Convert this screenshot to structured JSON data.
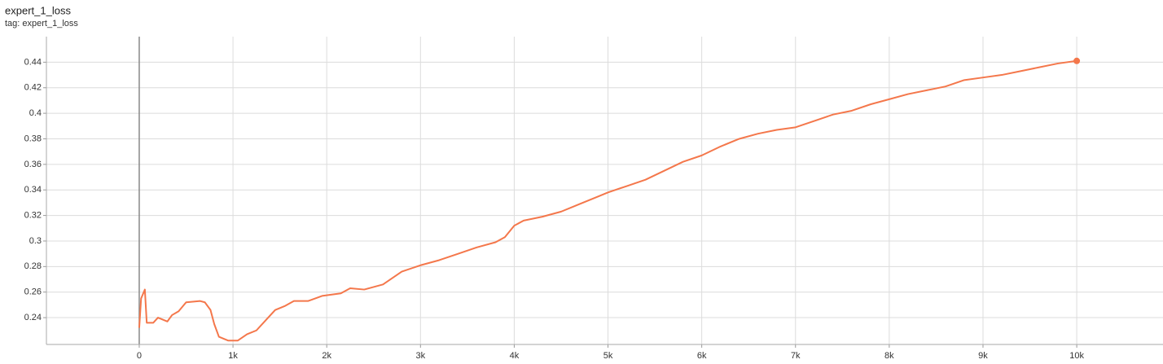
{
  "chart_data": {
    "type": "line",
    "title": "expert_1_loss",
    "subtitle": "tag: expert_1_loss",
    "x": [
      0,
      20,
      60,
      80,
      150,
      200,
      300,
      350,
      420,
      500,
      650,
      700,
      760,
      800,
      850,
      950,
      1050,
      1150,
      1250,
      1350,
      1450,
      1550,
      1650,
      1800,
      1950,
      2150,
      2250,
      2400,
      2600,
      2800,
      3000,
      3200,
      3400,
      3600,
      3800,
      3900,
      4000,
      4100,
      4300,
      4500,
      4700,
      4900,
      5000,
      5200,
      5400,
      5600,
      5800,
      6000,
      6200,
      6400,
      6600,
      6800,
      7000,
      7200,
      7400,
      7600,
      7800,
      8000,
      8200,
      8400,
      8600,
      8800,
      9000,
      9200,
      9400,
      9600,
      9800,
      10000
    ],
    "values": [
      0.232,
      0.255,
      0.262,
      0.236,
      0.236,
      0.24,
      0.237,
      0.242,
      0.245,
      0.252,
      0.253,
      0.252,
      0.246,
      0.235,
      0.225,
      0.222,
      0.222,
      0.227,
      0.23,
      0.238,
      0.246,
      0.249,
      0.253,
      0.253,
      0.257,
      0.259,
      0.263,
      0.262,
      0.266,
      0.276,
      0.281,
      0.285,
      0.29,
      0.295,
      0.299,
      0.303,
      0.312,
      0.316,
      0.319,
      0.323,
      0.329,
      0.335,
      0.338,
      0.343,
      0.348,
      0.355,
      0.362,
      0.367,
      0.374,
      0.38,
      0.384,
      0.387,
      0.389,
      0.394,
      0.399,
      0.402,
      0.407,
      0.411,
      0.415,
      0.418,
      0.421,
      0.426,
      0.428,
      0.43,
      0.433,
      0.436,
      0.439,
      0.441
    ],
    "color": "#f4774b",
    "xlim": [
      -990,
      10920
    ],
    "ylim": [
      0.219,
      0.46
    ],
    "xticks": [
      0,
      {
        "value": 1000,
        "label": "1k"
      },
      {
        "value": 2000,
        "label": "2k"
      },
      {
        "value": 3000,
        "label": "3k"
      },
      {
        "value": 4000,
        "label": "4k"
      },
      {
        "value": 5000,
        "label": "5k"
      },
      {
        "value": 6000,
        "label": "6k"
      },
      {
        "value": 7000,
        "label": "7k"
      },
      {
        "value": 8000,
        "label": "8k"
      },
      {
        "value": 9000,
        "label": "9k"
      },
      {
        "value": 10000,
        "label": "10k"
      }
    ],
    "yticks": [
      0.24,
      0.26,
      0.28,
      0.3,
      0.32,
      0.34,
      0.36,
      0.38,
      0.4,
      0.42,
      0.44
    ],
    "grid": true
  }
}
